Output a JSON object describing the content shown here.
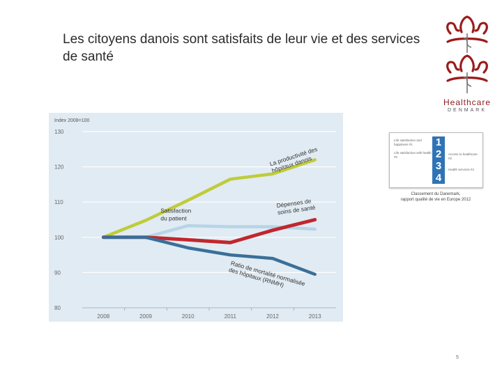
{
  "slide": {
    "title": "Les citoyens danois sont satisfaits de leur vie et des services de santé",
    "page_number": "5"
  },
  "logo": {
    "line1": "Healthcare",
    "line2": "DENMARK",
    "colors": {
      "crown": "#9b1c1c",
      "emblem": "#777777"
    }
  },
  "chart_data": {
    "type": "line",
    "title": "Index 2008=100",
    "categories": [
      "2008",
      "2009",
      "2010",
      "2011",
      "2012",
      "2013"
    ],
    "ylim": [
      80,
      130
    ],
    "yticks": [
      80,
      90,
      100,
      110,
      120,
      130
    ],
    "grid": true,
    "background": "#e1ebf3",
    "series": [
      {
        "name": "La productivité des hôpitaux danois",
        "color": "#bfcc3a",
        "values": [
          100,
          104.8,
          110.5,
          116.5,
          118,
          122
        ]
      },
      {
        "name": "Satisfaction du patient",
        "color": "#b7d4e8",
        "values": [
          100,
          100,
          103.3,
          103,
          103,
          102.3
        ]
      },
      {
        "name": "Dépenses de soins de santé",
        "color": "#c0272d",
        "values": [
          100,
          100,
          99.3,
          98.5,
          102,
          105
        ]
      },
      {
        "name": "Ratio de mortalité normalisée des hôpitaux (RNMH)",
        "color": "#3a6f98",
        "values": [
          100,
          100,
          97,
          95,
          94,
          89.5
        ]
      }
    ],
    "annotations": [
      {
        "series": 0,
        "line1": "La productivité des",
        "line2": "hôpitaux danois"
      },
      {
        "series": 1,
        "line1": "Satisfaction",
        "line2": "du patient"
      },
      {
        "series": 2,
        "line1": "Dépenses de",
        "line2": "soins de santé"
      },
      {
        "series": 3,
        "line1": "Ratio de mortalité normalisée",
        "line2": "des hôpitaux (RNMH)"
      }
    ]
  },
  "ranking": {
    "items": [
      {
        "rank": "1",
        "label": "Life satisfaction and happiness #1"
      },
      {
        "rank": "2",
        "label": "Access to healthcare #2"
      },
      {
        "rank": "3",
        "label": "Life satisfaction with health #2"
      },
      {
        "rank": "4",
        "label": "Health services #4"
      }
    ],
    "caption_line1": "Classement du Danemark,",
    "caption_line2": "rapport qualité de vie en Europe 2012"
  }
}
